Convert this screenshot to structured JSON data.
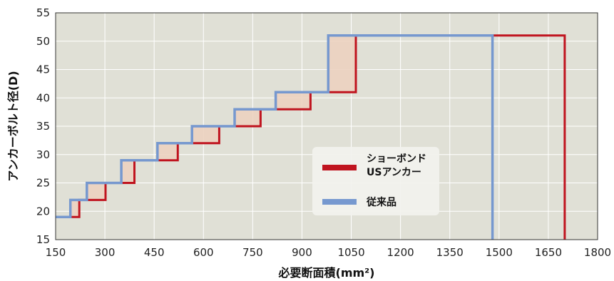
{
  "chart_data": {
    "type": "line",
    "xlabel": "必要断面積(mm²)",
    "ylabel": "アンカーボルト径(D)",
    "xlim": [
      150,
      1800
    ],
    "ylim": [
      15,
      55
    ],
    "xticks": [
      150,
      300,
      450,
      600,
      750,
      900,
      1050,
      1200,
      1350,
      1500,
      1650,
      1800
    ],
    "yticks": [
      15,
      20,
      25,
      30,
      35,
      40,
      45,
      50,
      55
    ],
    "grid": true,
    "legend_position": "center-right",
    "series": [
      {
        "name": "ショーボンド USアンカー",
        "color": "#c0141f",
        "step_points": [
          [
            150,
            19
          ],
          [
            222,
            19
          ],
          [
            222,
            22
          ],
          [
            302,
            22
          ],
          [
            302,
            25
          ],
          [
            390,
            25
          ],
          [
            390,
            29
          ],
          [
            522,
            29
          ],
          [
            522,
            32
          ],
          [
            648,
            32
          ],
          [
            648,
            35
          ],
          [
            774,
            35
          ],
          [
            774,
            38
          ],
          [
            926,
            38
          ],
          [
            926,
            41
          ],
          [
            1064,
            41
          ],
          [
            1064,
            51
          ],
          [
            1700,
            51
          ],
          [
            1700,
            15
          ]
        ]
      },
      {
        "name": "従来品",
        "color": "#7698cf",
        "step_points": [
          [
            150,
            19
          ],
          [
            195,
            19
          ],
          [
            195,
            22
          ],
          [
            245,
            22
          ],
          [
            245,
            25
          ],
          [
            350,
            25
          ],
          [
            350,
            29
          ],
          [
            460,
            29
          ],
          [
            460,
            32
          ],
          [
            565,
            32
          ],
          [
            565,
            35
          ],
          [
            695,
            35
          ],
          [
            695,
            38
          ],
          [
            820,
            38
          ],
          [
            820,
            41
          ],
          [
            980,
            41
          ],
          [
            980,
            51
          ],
          [
            1480,
            51
          ],
          [
            1480,
            15
          ]
        ]
      }
    ]
  }
}
